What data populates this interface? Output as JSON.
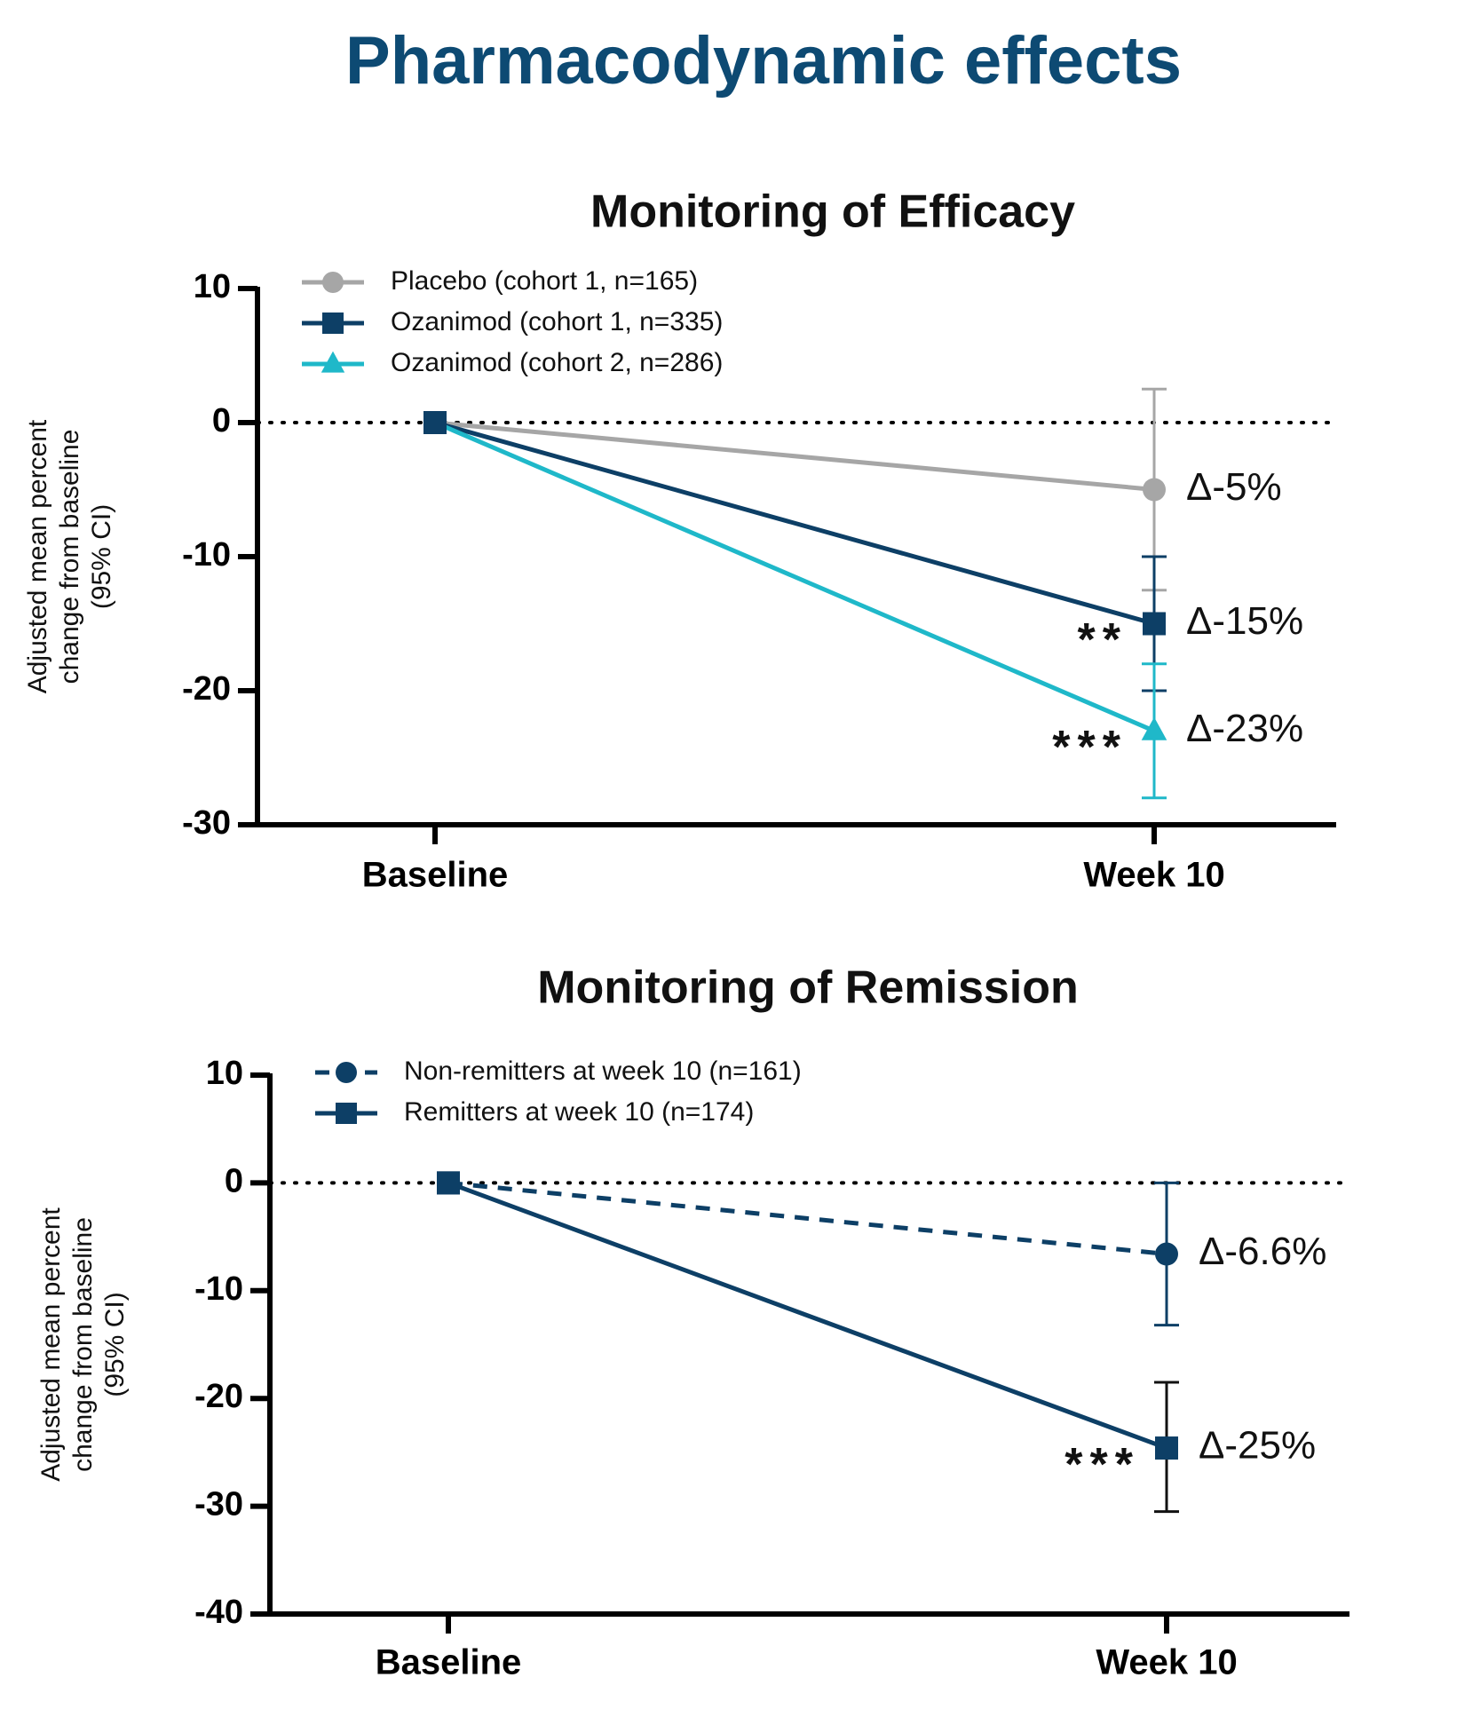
{
  "title": "Pharmacodynamic effects",
  "chart_data": [
    {
      "type": "line",
      "title": "Monitoring of Efficacy",
      "ylabel": [
        "Adjusted mean percent",
        "change from baseline",
        "(95% CI)"
      ],
      "categories": [
        "Baseline",
        "Week 10"
      ],
      "ylim": [
        -30,
        10
      ],
      "yticks": [
        -30,
        -20,
        -10,
        0,
        10
      ],
      "reference_line": 0,
      "series": [
        {
          "name": "Placebo (cohort 1, n=165)",
          "color": "#a6a6a6",
          "error_color": "#a6a6a6",
          "marker": "circle",
          "line_style": "solid",
          "values": [
            0,
            -5
          ],
          "lower": [
            null,
            -12.5
          ],
          "upper": [
            null,
            2.5
          ],
          "value_labels": [
            null,
            "Δ-5%"
          ],
          "significance": [
            null,
            null
          ]
        },
        {
          "name": "Ozanimod (cohort 1, n=335)",
          "color": "#0d3f66",
          "error_color": "#0d3f66",
          "marker": "square",
          "line_style": "solid",
          "values": [
            0,
            -15
          ],
          "lower": [
            null,
            -20
          ],
          "upper": [
            null,
            -10
          ],
          "value_labels": [
            null,
            "Δ-15%"
          ],
          "significance": [
            null,
            "**"
          ]
        },
        {
          "name": "Ozanimod (cohort 2, n=286)",
          "color": "#1fb8c9",
          "error_color": "#1fb8c9",
          "marker": "triangle",
          "line_style": "solid",
          "values": [
            0,
            -23
          ],
          "lower": [
            null,
            -28
          ],
          "upper": [
            null,
            -18
          ],
          "value_labels": [
            null,
            "Δ-23%"
          ],
          "significance": [
            null,
            "***"
          ]
        }
      ]
    },
    {
      "type": "line",
      "title": "Monitoring of Remission",
      "ylabel": [
        "Adjusted mean percent",
        "change from baseline",
        "(95% CI)"
      ],
      "categories": [
        "Baseline",
        "Week 10"
      ],
      "ylim": [
        -40,
        10
      ],
      "yticks": [
        -40,
        -30,
        -20,
        -10,
        0,
        10
      ],
      "reference_line": 0,
      "series": [
        {
          "name": "Non-remitters at week 10 (n=161)",
          "color": "#0d3f66",
          "error_color": "#0d3f66",
          "marker": "circle",
          "line_style": "dashed",
          "values": [
            0,
            -6.6
          ],
          "lower": [
            null,
            -13.2
          ],
          "upper": [
            null,
            0
          ],
          "value_labels": [
            null,
            "Δ-6.6%"
          ],
          "significance": [
            null,
            null
          ]
        },
        {
          "name": "Remitters at week 10 (n=174)",
          "color": "#0d3f66",
          "error_color": "#111111",
          "marker": "square",
          "line_style": "solid",
          "values": [
            0,
            -24.6
          ],
          "lower": [
            null,
            -30.5
          ],
          "upper": [
            null,
            -18.5
          ],
          "value_labels": [
            null,
            "Δ-25%"
          ],
          "significance": [
            null,
            "***"
          ]
        }
      ]
    }
  ]
}
